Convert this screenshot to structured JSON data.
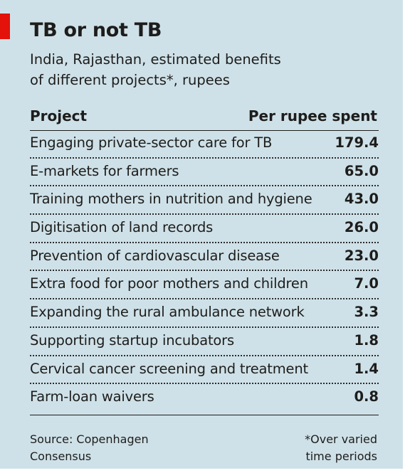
{
  "chart_data": {
    "type": "table",
    "title": "TB or not TB",
    "subtitle_lines": [
      "India, Rajasthan, estimated benefits",
      "of different projects*, rupees"
    ],
    "columns": [
      "Project",
      "Per rupee spent"
    ],
    "rows": [
      {
        "project": "Engaging private-sector care for TB",
        "value": "179.4"
      },
      {
        "project": "E-markets for farmers",
        "value": "65.0"
      },
      {
        "project": "Training mothers in nutrition and hygiene",
        "value": "43.0"
      },
      {
        "project": "Digitisation of land records",
        "value": "26.0"
      },
      {
        "project": "Prevention of cardiovascular disease",
        "value": "23.0"
      },
      {
        "project": "Extra food for poor mothers and children",
        "value": "7.0"
      },
      {
        "project": "Expanding the rural ambulance network",
        "value": "3.3"
      },
      {
        "project": "Supporting startup incubators",
        "value": "1.8"
      },
      {
        "project": "Cervical cancer screening and treatment",
        "value": "1.4"
      },
      {
        "project": "Farm-loan waivers",
        "value": "0.8"
      }
    ],
    "source_lines": [
      "Source: Copenhagen",
      "Consensus"
    ],
    "footnote_lines": [
      "*Over varied",
      "time periods"
    ]
  },
  "colors": {
    "background": "#cfe1e8",
    "accent_red": "#e3120b",
    "text": "#1d1d1b"
  }
}
